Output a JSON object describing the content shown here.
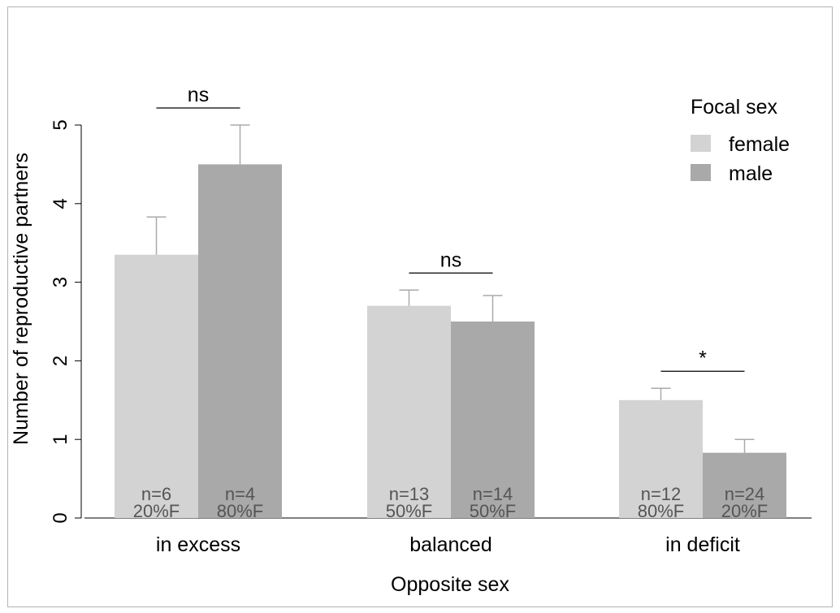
{
  "chart_data": {
    "type": "bar",
    "xlabel": "Opposite sex",
    "ylabel": "Number of reproductive partners",
    "ylim": [
      0,
      5
    ],
    "yticks": [
      "0",
      "1",
      "2",
      "3",
      "4",
      "5"
    ],
    "grid": false,
    "legend": {
      "title": "Focal sex",
      "placement": "top-right"
    },
    "categories": [
      "in excess",
      "balanced",
      "in deficit"
    ],
    "series": [
      {
        "name": "female",
        "color": "#d3d3d3",
        "values": [
          3.35,
          2.7,
          1.5
        ],
        "error_upper": [
          3.83,
          2.9,
          1.65
        ],
        "sample_labels": [
          "n=6",
          "n=13",
          "n=12"
        ],
        "percent_labels": [
          "20%F",
          "50%F",
          "80%F"
        ]
      },
      {
        "name": "male",
        "color": "#a9a9a9",
        "values": [
          4.5,
          2.5,
          0.83
        ],
        "error_upper": [
          5.0,
          2.83,
          1.0
        ],
        "sample_labels": [
          "n=4",
          "n=14",
          "n=24"
        ],
        "percent_labels": [
          "80%F",
          "50%F",
          "20%F"
        ]
      }
    ],
    "significance": [
      "ns",
      "ns",
      "*"
    ]
  }
}
